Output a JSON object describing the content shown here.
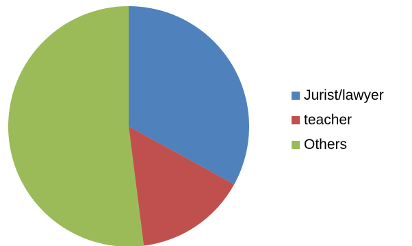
{
  "chart_data": {
    "type": "pie",
    "title": "",
    "start_angle": "12 o'clock",
    "direction": "clockwise",
    "categories": [
      "Jurist/lawyer",
      "teacher",
      "Others"
    ],
    "values": [
      33,
      15,
      52
    ],
    "colors": [
      "#4F81BD",
      "#C0504D",
      "#9BBB59"
    ],
    "legend": {
      "placement": "right",
      "entries": [
        "Jurist/lawyer",
        "teacher",
        "Others"
      ]
    }
  }
}
